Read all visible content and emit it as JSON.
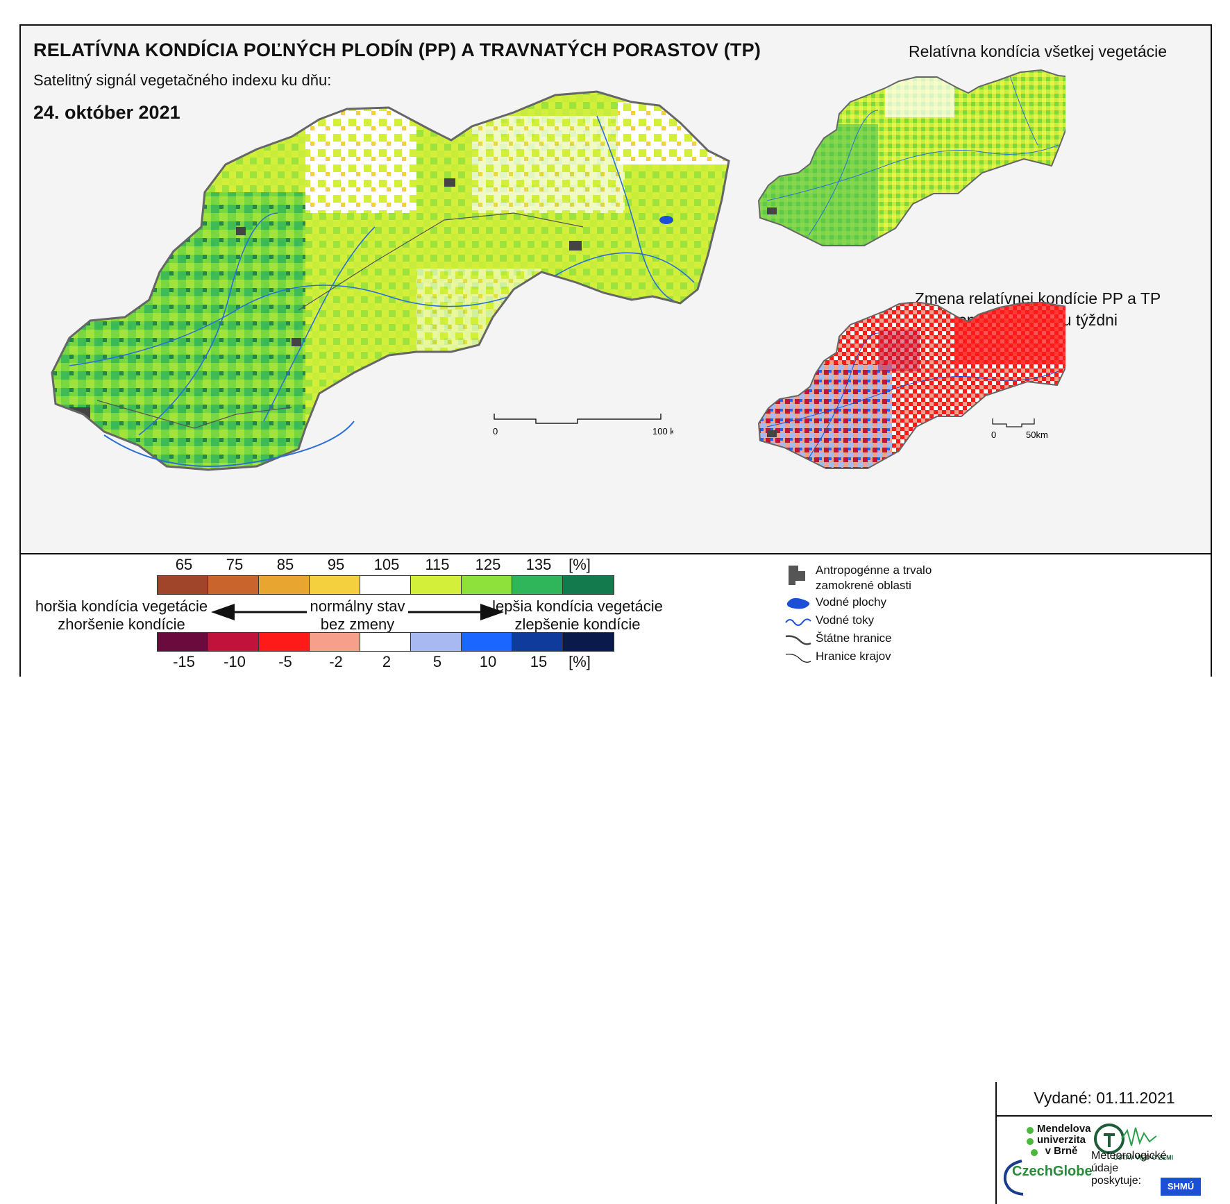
{
  "title": "RELATÍVNA KONDÍCIA POĽNÝCH PLODÍN (PP) A TRAVNATÝCH PORASTOV (TP)",
  "subtitle": "Satelitný signál vegetačného indexu ku dňu:",
  "date": "24. október 2021",
  "right_top_title": "Relatívna kondícia všetkej vegetácie",
  "right_bottom_title_line1": "Zmena relatívnej kondície PP a TP",
  "right_bottom_title_line2": "oproti minulému týždni",
  "scale_main": {
    "zero": "0",
    "end": "100 km"
  },
  "scale_small": {
    "zero": "0",
    "end": "50km"
  },
  "legend": {
    "top_ticks": [
      "65",
      "75",
      "85",
      "95",
      "105",
      "115",
      "125",
      "135",
      "[%]"
    ],
    "top_colors": [
      "#a0442a",
      "#c9652c",
      "#e8a530",
      "#f4d03f",
      "#ffffff",
      "#d4ef3a",
      "#8ee03b",
      "#2fb65a",
      "#137a4e"
    ],
    "bottom_ticks": [
      "-15",
      "-10",
      "-5",
      "-2",
      "2",
      "5",
      "10",
      "15",
      "[%]"
    ],
    "bottom_colors": [
      "#6b0a3c",
      "#c0123a",
      "#ff1a1a",
      "#f6a08c",
      "#ffffff",
      "#a8b8f0",
      "#1a66ff",
      "#0f3c9c",
      "#0a1a4a"
    ],
    "left_line1": "horšia kondícia vegetácie",
    "left_line2": "zhoršenie kondície",
    "center_line1": "normálny stav",
    "center_line2": "bez zmeny",
    "right_line1": "lepšia kondícia vegetácie",
    "right_line2": "zlepšenie kondície"
  },
  "map_legend": {
    "anthropogenic_line1": "Antropogénne a trvalo",
    "anthropogenic_line2": "zamokrené oblasti",
    "water_bodies": "Vodné plochy",
    "rivers": "Vodné toky",
    "state_borders": "Štátne hranice",
    "region_borders": "Hranice krajov"
  },
  "issued": "Vydané: 01.11.2021",
  "logos": {
    "mendel_line1": "Mendelova",
    "mendel_line2": "univerzita",
    "mendel_line3": "v Brně",
    "ustav": "ÚSTAV VIED O ZEMI",
    "czechglobe": "CzechGlobe",
    "meteo_line1": "Meteorologické",
    "meteo_line2": "údaje",
    "meteo_line3": "poskytuje:",
    "shmu": "SHMÚ"
  }
}
